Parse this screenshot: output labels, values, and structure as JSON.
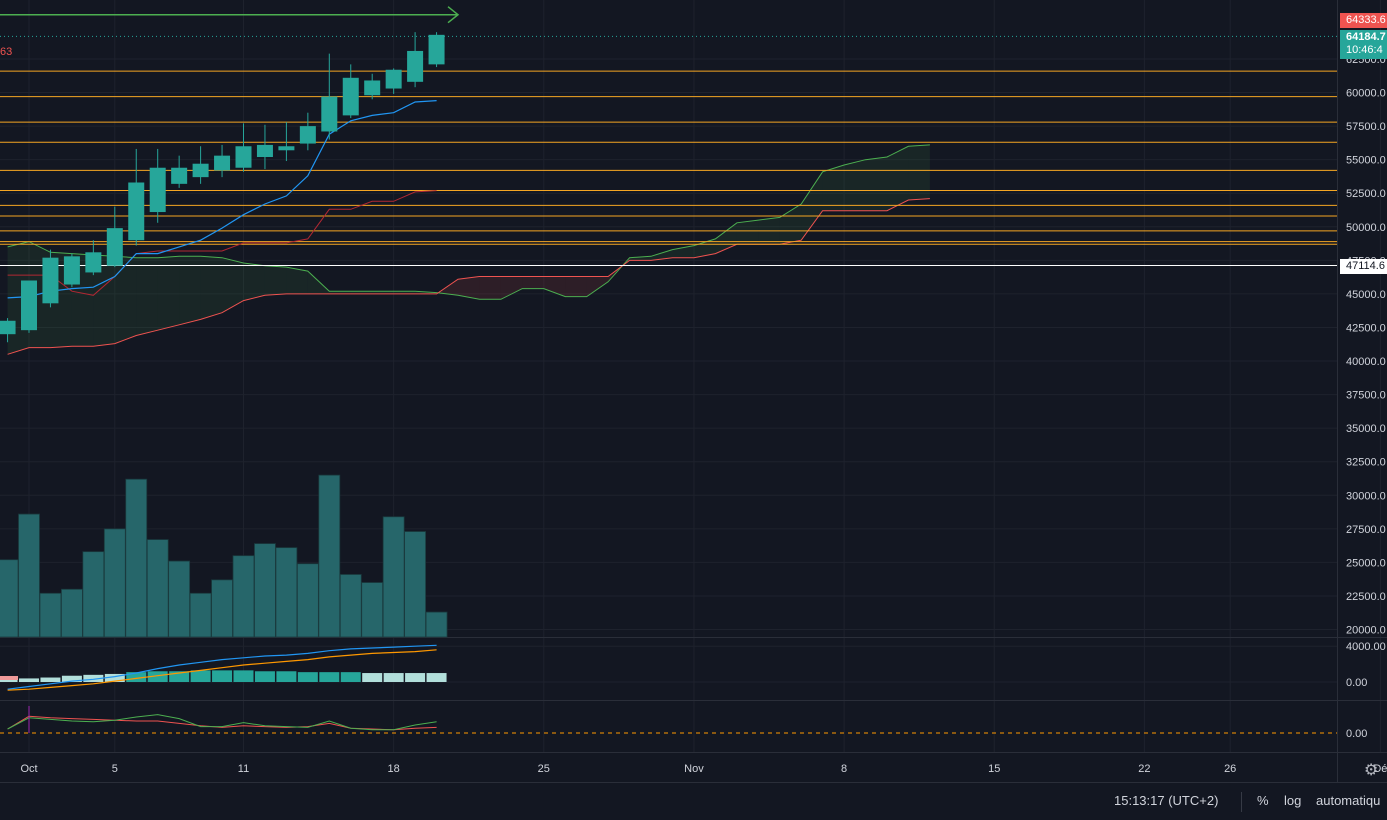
{
  "corner_label": "63",
  "price_tags": {
    "high": "64333.6",
    "last": "64184.7",
    "countdown": "10:46:4",
    "level": "47114.6"
  },
  "footer": {
    "time": "15:13:17 (UTC+2)",
    "percent": "%",
    "log": "log",
    "auto": "automatiqu"
  },
  "icons": {
    "settings": "gear-icon"
  },
  "colors": {
    "background": "#131722",
    "up": "#26a69a",
    "grid": "#1e222d",
    "fib_line": "#f5a623",
    "tenkan": "#2196f3",
    "kijun": "#ef5350",
    "span_a": "#4caf50",
    "span_b": "#ef5350",
    "macd": "#2196f3",
    "signal": "#ff9800"
  },
  "chart_data": [
    {
      "type": "candlestick",
      "title": "",
      "x_ticks": [
        "Oct",
        "5",
        "11",
        "18",
        "25",
        "Nov",
        "8",
        "15",
        "22",
        "26",
        "Dé"
      ],
      "x_tick_day_index": [
        0,
        4,
        10,
        17,
        24,
        31,
        38,
        45,
        52,
        56,
        63
      ],
      "y_ticks": [
        20000,
        22500,
        25000,
        27500,
        30000,
        32500,
        35000,
        37500,
        40000,
        42500,
        45000,
        47500,
        50000,
        52500,
        55000,
        57500,
        60000,
        62500
      ],
      "y_tick_labels": [
        "20000.0",
        "22500.0",
        "25000.0",
        "27500.0",
        "30000.0",
        "32500.0",
        "35000.0",
        "37500.0",
        "40000.0",
        "42500.0",
        "45000.0",
        "47500.0",
        "50000.0",
        "52500.0",
        "55000.0",
        "57500.0",
        "60000.0",
        "62500.0"
      ],
      "ylim": [
        18000,
        66000
      ],
      "candles": [
        {
          "day": -1,
          "o": 42000,
          "h": 43200,
          "l": 41400,
          "c": 43000
        },
        {
          "day": 0,
          "o": 42300,
          "h": 46000,
          "l": 42100,
          "c": 46000
        },
        {
          "day": 1,
          "o": 44300,
          "h": 48300,
          "l": 44000,
          "c": 47700
        },
        {
          "day": 2,
          "o": 45700,
          "h": 48000,
          "l": 45500,
          "c": 47800
        },
        {
          "day": 3,
          "o": 46600,
          "h": 49000,
          "l": 46400,
          "c": 48100
        },
        {
          "day": 4,
          "o": 47100,
          "h": 51500,
          "l": 47000,
          "c": 49900
        },
        {
          "day": 5,
          "o": 49000,
          "h": 55800,
          "l": 48600,
          "c": 53300
        },
        {
          "day": 6,
          "o": 51100,
          "h": 55800,
          "l": 50300,
          "c": 54400
        },
        {
          "day": 7,
          "o": 53200,
          "h": 55300,
          "l": 52900,
          "c": 54400
        },
        {
          "day": 8,
          "o": 53700,
          "h": 56000,
          "l": 53200,
          "c": 54700
        },
        {
          "day": 9,
          "o": 54200,
          "h": 56100,
          "l": 53700,
          "c": 55300
        },
        {
          "day": 10,
          "o": 54400,
          "h": 57700,
          "l": 54100,
          "c": 56000
        },
        {
          "day": 11,
          "o": 55200,
          "h": 57600,
          "l": 54300,
          "c": 56100
        },
        {
          "day": 12,
          "o": 55700,
          "h": 57800,
          "l": 54900,
          "c": 56000
        },
        {
          "day": 13,
          "o": 56200,
          "h": 58500,
          "l": 55700,
          "c": 57500
        },
        {
          "day": 14,
          "o": 57100,
          "h": 62900,
          "l": 56500,
          "c": 59700
        },
        {
          "day": 15,
          "o": 58300,
          "h": 62100,
          "l": 58100,
          "c": 61100
        },
        {
          "day": 16,
          "o": 59800,
          "h": 61400,
          "l": 59500,
          "c": 60900
        },
        {
          "day": 17,
          "o": 60300,
          "h": 61800,
          "l": 59900,
          "c": 61700
        },
        {
          "day": 18,
          "o": 60800,
          "h": 64500,
          "l": 60400,
          "c": 63100
        },
        {
          "day": 19,
          "o": 62100,
          "h": 64500,
          "l": 61900,
          "c": 64300
        }
      ],
      "tenkan": [
        [
          -1,
          44700
        ],
        [
          0,
          44800
        ],
        [
          1,
          45200
        ],
        [
          2,
          45400
        ],
        [
          3,
          45500
        ],
        [
          4,
          46300
        ],
        [
          5,
          48000
        ],
        [
          6,
          48000
        ],
        [
          7,
          48500
        ],
        [
          8,
          49000
        ],
        [
          9,
          49900
        ],
        [
          10,
          50900
        ],
        [
          11,
          51700
        ],
        [
          12,
          52300
        ],
        [
          13,
          53800
        ],
        [
          14,
          56900
        ],
        [
          15,
          57900
        ],
        [
          16,
          58300
        ],
        [
          17,
          58500
        ],
        [
          18,
          59300
        ],
        [
          19,
          59400
        ]
      ],
      "kijun": [
        [
          -1,
          46400
        ],
        [
          0,
          46400
        ],
        [
          1,
          46400
        ],
        [
          2,
          45200
        ],
        [
          3,
          44900
        ],
        [
          4,
          46300
        ],
        [
          5,
          48000
        ],
        [
          6,
          48200
        ],
        [
          7,
          48200
        ],
        [
          8,
          48200
        ],
        [
          9,
          48200
        ],
        [
          10,
          48800
        ],
        [
          11,
          48800
        ],
        [
          12,
          48800
        ],
        [
          13,
          49100
        ],
        [
          14,
          51300
        ],
        [
          15,
          51300
        ],
        [
          16,
          51900
        ],
        [
          17,
          51900
        ],
        [
          18,
          52600
        ],
        [
          19,
          52700
        ]
      ],
      "span_a": [
        [
          -1,
          48500
        ],
        [
          0,
          48900
        ],
        [
          1,
          48100
        ],
        [
          2,
          48000
        ],
        [
          3,
          47900
        ],
        [
          4,
          47800
        ],
        [
          5,
          47700
        ],
        [
          6,
          47700
        ],
        [
          7,
          47800
        ],
        [
          8,
          47800
        ],
        [
          9,
          47700
        ],
        [
          10,
          47300
        ],
        [
          11,
          47100
        ],
        [
          12,
          47000
        ],
        [
          13,
          46700
        ],
        [
          14,
          45200
        ],
        [
          15,
          45200
        ],
        [
          16,
          45200
        ],
        [
          17,
          45200
        ],
        [
          18,
          45200
        ],
        [
          19,
          45100
        ],
        [
          20,
          44900
        ],
        [
          21,
          44600
        ],
        [
          22,
          44600
        ],
        [
          23,
          45400
        ],
        [
          24,
          45400
        ],
        [
          25,
          44800
        ],
        [
          26,
          44800
        ],
        [
          27,
          45900
        ],
        [
          28,
          47700
        ],
        [
          29,
          47800
        ],
        [
          30,
          48300
        ],
        [
          31,
          48600
        ],
        [
          32,
          49100
        ],
        [
          33,
          50300
        ],
        [
          34,
          50500
        ],
        [
          35,
          50700
        ],
        [
          36,
          51700
        ],
        [
          37,
          54100
        ],
        [
          38,
          54600
        ],
        [
          39,
          55000
        ],
        [
          40,
          55200
        ],
        [
          41,
          56000
        ],
        [
          42,
          56100
        ]
      ],
      "span_b": [
        [
          -1,
          40500
        ],
        [
          0,
          41000
        ],
        [
          1,
          41000
        ],
        [
          2,
          41100
        ],
        [
          3,
          41100
        ],
        [
          4,
          41300
        ],
        [
          5,
          41900
        ],
        [
          6,
          42300
        ],
        [
          7,
          42700
        ],
        [
          8,
          43100
        ],
        [
          9,
          43600
        ],
        [
          10,
          44500
        ],
        [
          11,
          44900
        ],
        [
          12,
          45000
        ],
        [
          13,
          45000
        ],
        [
          14,
          45000
        ],
        [
          15,
          45000
        ],
        [
          16,
          45000
        ],
        [
          17,
          45000
        ],
        [
          18,
          45000
        ],
        [
          19,
          45000
        ],
        [
          20,
          46100
        ],
        [
          21,
          46300
        ],
        [
          22,
          46300
        ],
        [
          23,
          46300
        ],
        [
          24,
          46300
        ],
        [
          25,
          46300
        ],
        [
          26,
          46300
        ],
        [
          27,
          46300
        ],
        [
          28,
          47500
        ],
        [
          29,
          47500
        ],
        [
          30,
          47700
        ],
        [
          31,
          47700
        ],
        [
          32,
          48000
        ],
        [
          33,
          48700
        ],
        [
          34,
          48700
        ],
        [
          35,
          48700
        ],
        [
          36,
          49000
        ],
        [
          37,
          51200
        ],
        [
          38,
          51200
        ],
        [
          39,
          51200
        ],
        [
          40,
          51200
        ],
        [
          41,
          52000
        ],
        [
          42,
          52100
        ]
      ],
      "horizontal_levels": [
        61600,
        59700,
        57800,
        56300,
        54200,
        52700,
        51600,
        50800,
        49700,
        48900,
        48700
      ],
      "white_level": 47114.6,
      "target_arrow": {
        "from_day": -1,
        "to_day": 20,
        "value": 65800
      },
      "last_price_value": 64184.7,
      "volume": [
        {
          "day": -1,
          "v": 25200
        },
        {
          "day": 0,
          "v": 28600
        },
        {
          "day": 1,
          "v": 22700
        },
        {
          "day": 2,
          "v": 23000
        },
        {
          "day": 3,
          "v": 25800
        },
        {
          "day": 4,
          "v": 27500
        },
        {
          "day": 5,
          "v": 31200
        },
        {
          "day": 6,
          "v": 26700
        },
        {
          "day": 7,
          "v": 25100
        },
        {
          "day": 8,
          "v": 22700
        },
        {
          "day": 9,
          "v": 23700
        },
        {
          "day": 10,
          "v": 25500
        },
        {
          "day": 11,
          "v": 26400
        },
        {
          "day": 12,
          "v": 26100
        },
        {
          "day": 13,
          "v": 24900
        },
        {
          "day": 14,
          "v": 31500
        },
        {
          "day": 15,
          "v": 24100
        },
        {
          "day": 16,
          "v": 23500
        },
        {
          "day": 17,
          "v": 28400
        },
        {
          "day": 18,
          "v": 27300
        },
        {
          "day": 19,
          "v": 21300
        }
      ]
    },
    {
      "type": "histogram+line",
      "title": "",
      "y_ticks": [
        0,
        4000
      ],
      "y_tick_labels": [
        "0.00",
        "4000.00"
      ],
      "ylim": [
        -1500,
        5000
      ],
      "histogram": [
        [
          -1,
          300
        ],
        [
          0,
          400
        ],
        [
          1,
          500
        ],
        [
          2,
          700
        ],
        [
          3,
          800
        ],
        [
          4,
          900
        ],
        [
          5,
          1100
        ],
        [
          6,
          1200
        ],
        [
          7,
          1200
        ],
        [
          8,
          1300
        ],
        [
          9,
          1300
        ],
        [
          10,
          1300
        ],
        [
          11,
          1200
        ],
        [
          12,
          1200
        ],
        [
          13,
          1100
        ],
        [
          14,
          1100
        ],
        [
          15,
          1100
        ],
        [
          16,
          1000
        ],
        [
          17,
          1000
        ],
        [
          18,
          1000
        ],
        [
          19,
          1000
        ]
      ],
      "macd": [
        [
          -1,
          -800
        ],
        [
          0,
          -500
        ],
        [
          1,
          -200
        ],
        [
          2,
          100
        ],
        [
          3,
          300
        ],
        [
          4,
          600
        ],
        [
          5,
          1000
        ],
        [
          6,
          1500
        ],
        [
          7,
          1900
        ],
        [
          8,
          2200
        ],
        [
          9,
          2500
        ],
        [
          10,
          2700
        ],
        [
          11,
          2900
        ],
        [
          12,
          3000
        ],
        [
          13,
          3200
        ],
        [
          14,
          3500
        ],
        [
          15,
          3700
        ],
        [
          16,
          3800
        ],
        [
          17,
          3900
        ],
        [
          18,
          4000
        ],
        [
          19,
          4100
        ]
      ],
      "signal": [
        [
          -1,
          -900
        ],
        [
          0,
          -800
        ],
        [
          1,
          -600
        ],
        [
          2,
          -400
        ],
        [
          3,
          -200
        ],
        [
          4,
          100
        ],
        [
          5,
          400
        ],
        [
          6,
          700
        ],
        [
          7,
          1000
        ],
        [
          8,
          1300
        ],
        [
          9,
          1600
        ],
        [
          10,
          1900
        ],
        [
          11,
          2100
        ],
        [
          12,
          2300
        ],
        [
          13,
          2500
        ],
        [
          14,
          2800
        ],
        [
          15,
          3000
        ],
        [
          16,
          3200
        ],
        [
          17,
          3300
        ],
        [
          18,
          3400
        ],
        [
          19,
          3600
        ]
      ]
    },
    {
      "type": "line",
      "title": "",
      "y_ticks": [
        0
      ],
      "y_tick_labels": [
        "0.00"
      ],
      "ylim": [
        -1,
        4
      ],
      "lines": [
        {
          "color": "#ef5350",
          "points": [
            [
              -1,
              0.5
            ],
            [
              0,
              2.1
            ],
            [
              1,
              1.9
            ],
            [
              2,
              1.8
            ],
            [
              3,
              1.7
            ],
            [
              4,
              1.6
            ],
            [
              5,
              1.5
            ],
            [
              6,
              1.5
            ],
            [
              7,
              1.2
            ],
            [
              8,
              0.9
            ],
            [
              9,
              0.7
            ],
            [
              10,
              0.9
            ],
            [
              11,
              0.8
            ],
            [
              12,
              0.7
            ],
            [
              13,
              0.8
            ],
            [
              14,
              1.2
            ],
            [
              15,
              0.6
            ],
            [
              16,
              0.5
            ],
            [
              17,
              0.4
            ],
            [
              18,
              0.6
            ],
            [
              19,
              0.7
            ]
          ]
        },
        {
          "color": "#4caf50",
          "points": [
            [
              -1,
              0.5
            ],
            [
              0,
              1.9
            ],
            [
              1,
              1.7
            ],
            [
              2,
              1.5
            ],
            [
              3,
              1.4
            ],
            [
              4,
              1.6
            ],
            [
              5,
              2.0
            ],
            [
              6,
              2.3
            ],
            [
              7,
              1.8
            ],
            [
              8,
              0.8
            ],
            [
              9,
              0.8
            ],
            [
              10,
              1.3
            ],
            [
              11,
              0.9
            ],
            [
              12,
              0.8
            ],
            [
              13,
              0.7
            ],
            [
              14,
              1.5
            ],
            [
              15,
              0.6
            ],
            [
              16,
              0.4
            ],
            [
              17,
              0.4
            ],
            [
              18,
              1.0
            ],
            [
              19,
              1.4
            ]
          ]
        }
      ]
    }
  ]
}
